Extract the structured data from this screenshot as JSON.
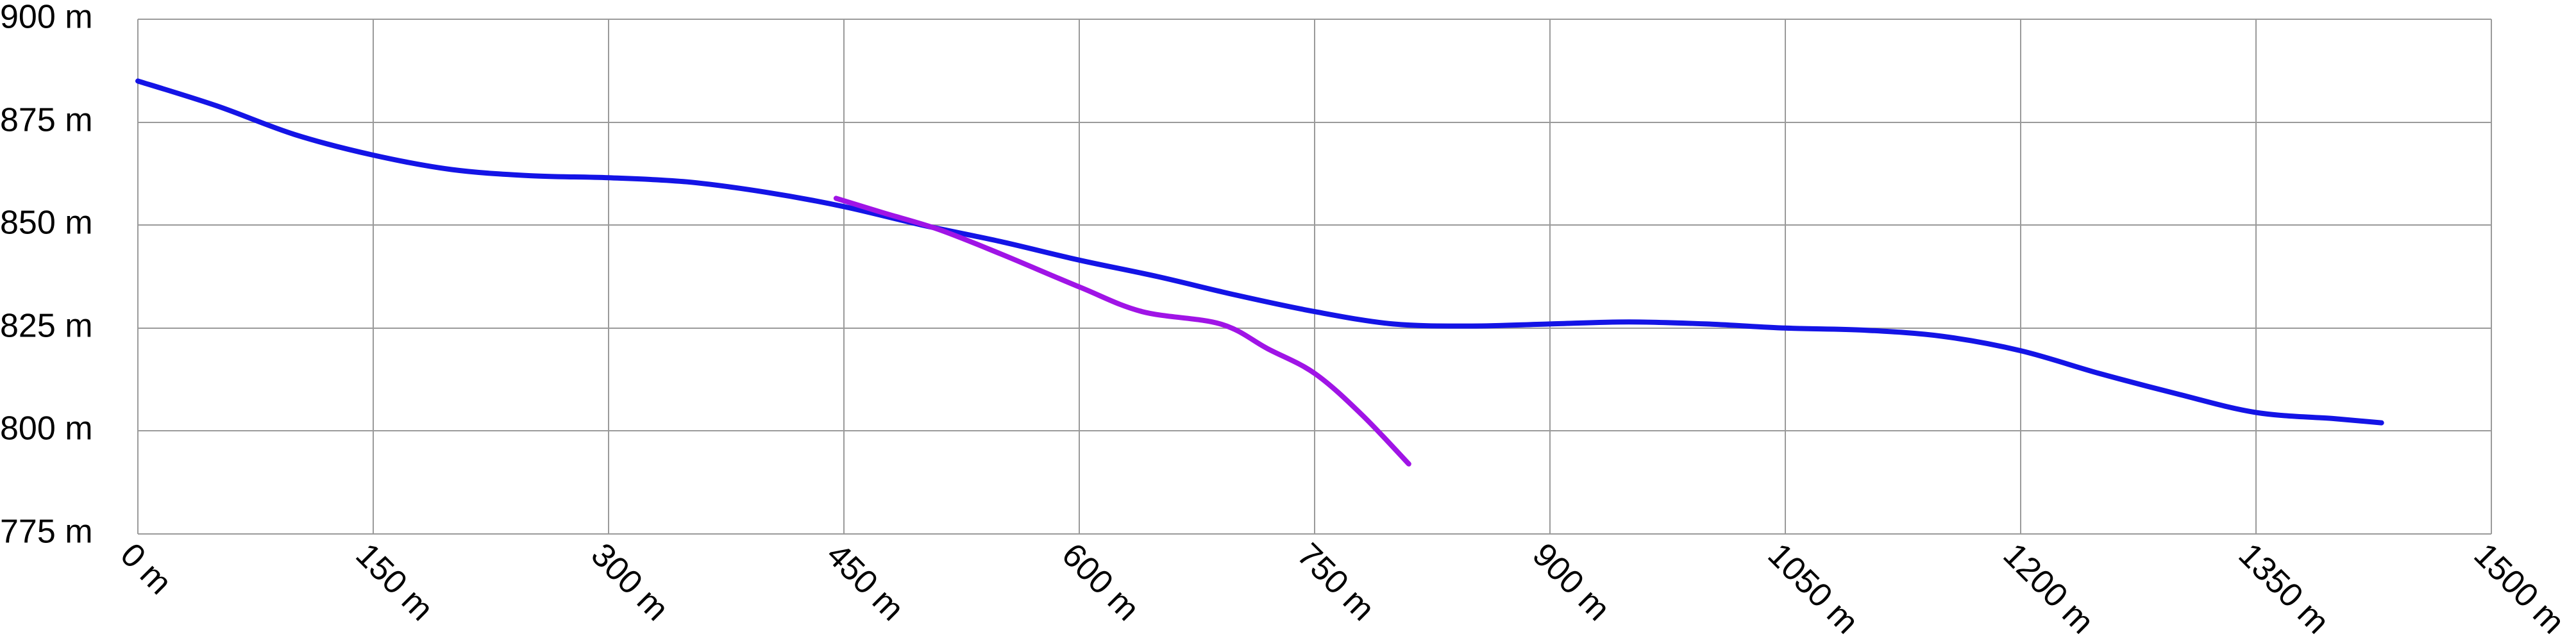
{
  "chart_data": {
    "type": "line",
    "title": "",
    "xlabel": "",
    "ylabel": "",
    "xlim": [
      0,
      1500
    ],
    "ylim": [
      775,
      900
    ],
    "x_ticks": [
      "0 m",
      "150 m",
      "300 m",
      "450 m",
      "600 m",
      "750 m",
      "900 m",
      "1050 m",
      "1200 m",
      "1350 m",
      "1500 m"
    ],
    "y_ticks": [
      "775 m",
      "800 m",
      "825 m",
      "850 m",
      "875 m",
      "900 m"
    ],
    "grid": true,
    "legend": "none",
    "series": [
      {
        "color": "#1414e6",
        "x": [
          0,
          50,
          100,
          150,
          200,
          250,
          300,
          350,
          400,
          450,
          500,
          550,
          600,
          650,
          700,
          750,
          800,
          850,
          900,
          950,
          1000,
          1050,
          1100,
          1150,
          1200,
          1250,
          1300,
          1350,
          1400,
          1430
        ],
        "y": [
          885,
          879,
          872,
          867,
          863.5,
          862,
          861.5,
          860.5,
          858,
          854.5,
          850,
          846,
          841.5,
          837.5,
          833,
          829,
          826,
          825.5,
          826,
          826.5,
          826,
          825,
          824.5,
          823,
          819.5,
          814,
          809,
          804.5,
          803,
          802
        ]
      },
      {
        "color": "#a014e6",
        "x": [
          445,
          475,
          510,
          550,
          600,
          640,
          690,
          720,
          750,
          780,
          810
        ],
        "y": [
          856.5,
          853,
          849,
          843,
          835,
          829,
          826,
          820,
          814,
          804,
          792
        ]
      }
    ]
  }
}
